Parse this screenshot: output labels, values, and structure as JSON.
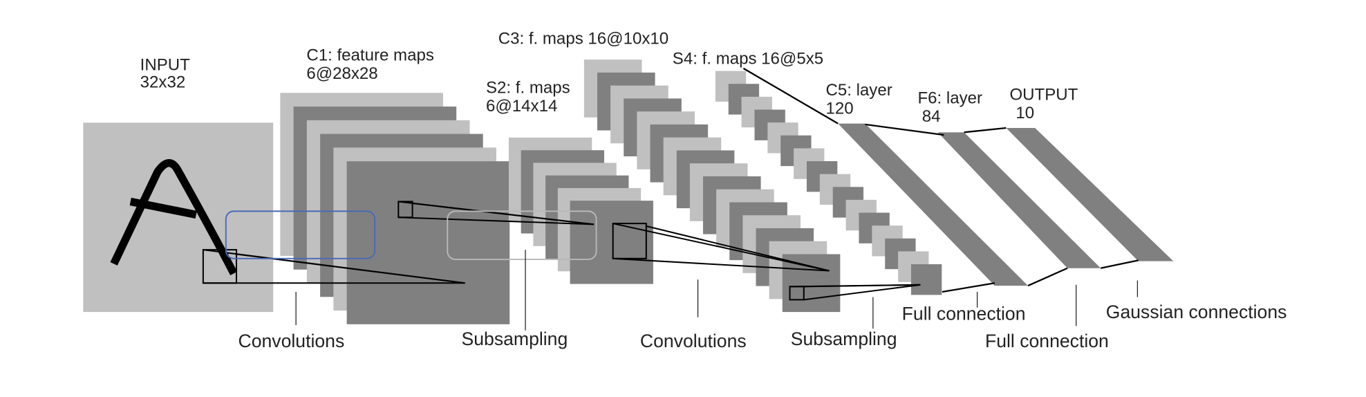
{
  "colors": {
    "light_map": "#c0c0c0",
    "dark_map": "#808080",
    "highlight_blue": "#4a68b8",
    "highlight_gray": "#b8b8b8"
  },
  "layers": {
    "input": {
      "name": "INPUT",
      "size": "32x32"
    },
    "c1": {
      "name": "C1: feature maps",
      "size": "6@28x28"
    },
    "s2": {
      "name": "S2: f. maps",
      "size": "6@14x14"
    },
    "c3": {
      "name": "C3: f. maps 16@10x10"
    },
    "s4": {
      "name": "S4: f. maps 16@5x5"
    },
    "c5": {
      "name": "C5: layer",
      "size": "120"
    },
    "f6": {
      "name": "F6: layer",
      "size": "84"
    },
    "output": {
      "name": "OUTPUT",
      "size": "10"
    }
  },
  "operations": {
    "conv1": "Convolutions",
    "sub1": "Subsampling",
    "conv2": "Convolutions",
    "sub2": "Subsampling",
    "full1": "Full connection",
    "full2": "Full connection",
    "gauss": "Gaussian connections"
  }
}
